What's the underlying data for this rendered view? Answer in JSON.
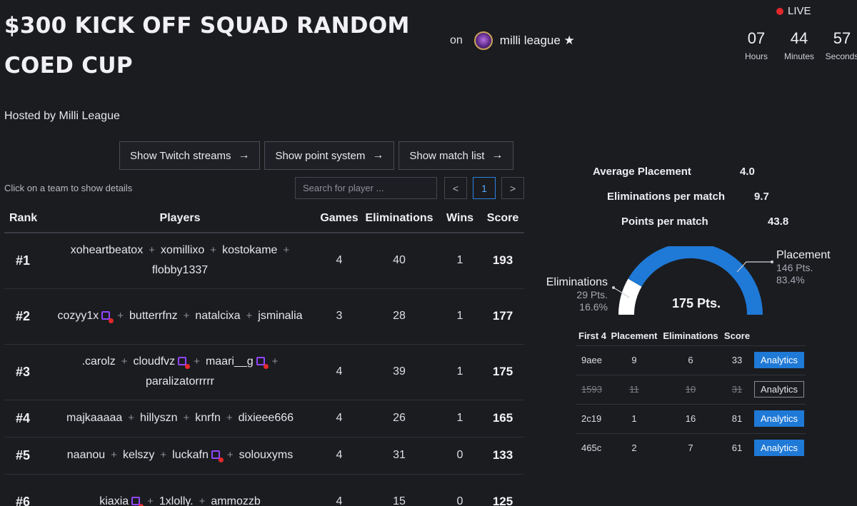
{
  "tournament": {
    "title": "$300 KICK OFF SQUAD RANDOM COED CUP",
    "on_label": "on",
    "org_name": "milli league ★",
    "hosted_by": "Hosted by Milli League"
  },
  "live": {
    "label": "LIVE",
    "countdown": [
      {
        "value": "07",
        "label": "Hours"
      },
      {
        "value": "44",
        "label": "Minutes"
      },
      {
        "value": "57",
        "label": "Seconds"
      }
    ]
  },
  "buttons": {
    "twitch": "Show Twitch streams",
    "points": "Show point system",
    "matches": "Show match list"
  },
  "standings_controls": {
    "hint": "Click on a team to show details",
    "search_placeholder": "Search for player ...",
    "prev": "<",
    "page": "1",
    "next": ">"
  },
  "standings": {
    "headers": {
      "rank": "Rank",
      "players": "Players",
      "games": "Games",
      "eliminations": "Eliminations",
      "wins": "Wins",
      "score": "Score"
    },
    "rows": [
      {
        "rank": "#1",
        "players": [
          {
            "name": "xoheartbeatox",
            "live": false
          },
          {
            "name": "xomillixo",
            "live": false
          },
          {
            "name": "kostokame",
            "live": false
          },
          {
            "name": "flobby1337",
            "live": false
          }
        ],
        "games": "4",
        "eliminations": "40",
        "wins": "1",
        "score": "193"
      },
      {
        "rank": "#2",
        "players": [
          {
            "name": "cozyy1x",
            "live": true
          },
          {
            "name": "butterrfnz",
            "live": false
          },
          {
            "name": "natalcixa",
            "live": false
          },
          {
            "name": "jsminalia",
            "live": false
          }
        ],
        "games": "3",
        "eliminations": "28",
        "wins": "1",
        "score": "177"
      },
      {
        "rank": "#3",
        "players": [
          {
            "name": ".carolz",
            "live": false
          },
          {
            "name": "cloudfvz",
            "live": true
          },
          {
            "name": "maari__g",
            "live": true
          },
          {
            "name": "paralizatorrrrr",
            "live": false
          }
        ],
        "games": "4",
        "eliminations": "39",
        "wins": "1",
        "score": "175"
      },
      {
        "rank": "#4",
        "players": [
          {
            "name": "majkaaaaa",
            "live": false
          },
          {
            "name": "hillyszn",
            "live": false
          },
          {
            "name": "knrfn",
            "live": false
          },
          {
            "name": "dixieee666",
            "live": false
          }
        ],
        "games": "4",
        "eliminations": "26",
        "wins": "1",
        "score": "165"
      },
      {
        "rank": "#5",
        "players": [
          {
            "name": "naanou",
            "live": false
          },
          {
            "name": "kelszy",
            "live": false
          },
          {
            "name": "luckafn",
            "live": true
          },
          {
            "name": "solouxyms",
            "live": false
          }
        ],
        "games": "4",
        "eliminations": "31",
        "wins": "0",
        "score": "133"
      },
      {
        "rank": "#6",
        "players": [
          {
            "name": "kiaxia",
            "live": true
          },
          {
            "name": "1xlolly.",
            "live": false
          },
          {
            "name": "ammozzb",
            "live": false
          }
        ],
        "games": "4",
        "eliminations": "15",
        "wins": "0",
        "score": "125"
      }
    ]
  },
  "team_stats": {
    "avg_placement_label": "Average Placement",
    "avg_placement": "4.0",
    "elims_per_match_label": "Eliminations per match",
    "elims_per_match": "9.7",
    "points_per_match_label": "Points per match",
    "points_per_match": "43.8"
  },
  "points_breakdown": {
    "total": "175 Pts.",
    "eliminations": {
      "label": "Eliminations",
      "points": "29 Pts.",
      "percent": "16.6%",
      "fraction": 0.166
    },
    "placement": {
      "label": "Placement",
      "points": "146 Pts.",
      "percent": "83.4%",
      "fraction": 0.834
    },
    "colors": {
      "placement": "#1f79d6",
      "eliminations": "#ffffff"
    }
  },
  "matches": {
    "headers": {
      "first": "First 4",
      "placement": "Placement",
      "eliminations": "Eliminations",
      "score": "Score"
    },
    "rows": [
      {
        "id": "9aee",
        "placement": "9",
        "eliminations": "6",
        "score": "33",
        "action": "Analytics",
        "struck": false
      },
      {
        "id": "1593",
        "placement": "11",
        "eliminations": "10",
        "score": "31",
        "action": "Analytics",
        "struck": true
      },
      {
        "id": "2c19",
        "placement": "1",
        "eliminations": "16",
        "score": "81",
        "action": "Analytics",
        "struck": false
      },
      {
        "id": "465c",
        "placement": "2",
        "eliminations": "7",
        "score": "61",
        "action": "Analytics",
        "struck": false
      }
    ]
  }
}
